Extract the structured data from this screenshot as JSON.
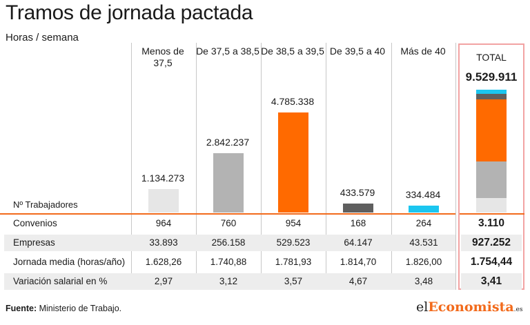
{
  "title": "Tramos de jornada pactada",
  "subtitle": "Horas / semana",
  "row_header": "Nº Trabajadores",
  "columns": [
    {
      "label": "Menos de 37,5",
      "workers_label": "1.134.273",
      "color": "#e6e6e6"
    },
    {
      "label": "De 37,5 a 38,5",
      "workers_label": "2.842.237",
      "color": "#b3b3b3"
    },
    {
      "label": "De 38,5 a 39,5",
      "workers_label": "4.785.338",
      "color": "#ff6a00"
    },
    {
      "label": "De 39,5 a 40",
      "workers_label": "433.579",
      "color": "#5f5f5f"
    },
    {
      "label": "Más de 40",
      "workers_label": "334.484",
      "color": "#1bc6f0"
    }
  ],
  "total": {
    "label": "TOTAL",
    "workers_label": "9.529.911"
  },
  "rows": [
    {
      "label": "Convenios",
      "values": [
        "964",
        "760",
        "954",
        "168",
        "264"
      ],
      "total": "3.110"
    },
    {
      "label": "Empresas",
      "values": [
        "33.893",
        "256.158",
        "529.523",
        "64.147",
        "43.531"
      ],
      "total": "927.252"
    },
    {
      "label": "Jornada media (horas/año)",
      "values": [
        "1.628,26",
        "1.740,88",
        "1.781,93",
        "1.814,70",
        "1.826,00"
      ],
      "total": "1.754,44"
    },
    {
      "label": "Variación salarial en %",
      "values": [
        "2,97",
        "3,12",
        "3,57",
        "4,67",
        "3,48"
      ],
      "total": "3,41"
    }
  ],
  "source_prefix": "Fuente:",
  "source_text": " Ministerio de Trabajo.",
  "logo": {
    "part1": "el",
    "part2": "Economista",
    "part3": ".es"
  },
  "chart_data": {
    "type": "bar",
    "title": "Tramos de jornada pactada",
    "subtitle": "Horas / semana",
    "categories": [
      "Menos de 37,5",
      "De 37,5 a 38,5",
      "De 38,5 a 39,5",
      "De 39,5 a 40",
      "Más de 40"
    ],
    "series": [
      {
        "name": "Nº Trabajadores",
        "values": [
          1134273,
          2842237,
          4785338,
          433579,
          334484
        ]
      }
    ],
    "stacked_total": {
      "label": "TOTAL",
      "value": 9529911
    },
    "colors": [
      "#e6e6e6",
      "#b3b3b3",
      "#ff6a00",
      "#5f5f5f",
      "#1bc6f0"
    ],
    "grid": false
  }
}
